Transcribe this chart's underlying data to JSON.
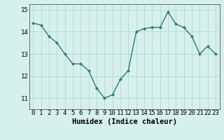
{
  "x": [
    0,
    1,
    2,
    3,
    4,
    5,
    6,
    7,
    8,
    9,
    10,
    11,
    12,
    13,
    14,
    15,
    16,
    17,
    18,
    19,
    20,
    21,
    22,
    23
  ],
  "y": [
    14.4,
    14.3,
    13.8,
    13.5,
    13.0,
    12.55,
    12.55,
    12.25,
    11.45,
    11.0,
    11.15,
    11.85,
    12.25,
    14.0,
    14.15,
    14.2,
    14.2,
    14.9,
    14.35,
    14.2,
    13.8,
    13.0,
    13.35,
    13.0
  ],
  "line_color": "#2e7d6e",
  "marker": "D",
  "marker_size": 2.0,
  "bg_color": "#d6f0eb",
  "grid_color": "#b0d9d0",
  "title": "",
  "xlabel": "Humidex (Indice chaleur)",
  "ylabel": "",
  "xlim": [
    -0.5,
    23.5
  ],
  "ylim": [
    10.5,
    15.25
  ],
  "yticks": [
    11,
    12,
    13,
    14,
    15
  ],
  "xticks": [
    0,
    1,
    2,
    3,
    4,
    5,
    6,
    7,
    8,
    9,
    10,
    11,
    12,
    13,
    14,
    15,
    16,
    17,
    18,
    19,
    20,
    21,
    22,
    23
  ],
  "xlabel_fontsize": 7.5,
  "tick_fontsize": 6.5,
  "line_width": 1.0
}
